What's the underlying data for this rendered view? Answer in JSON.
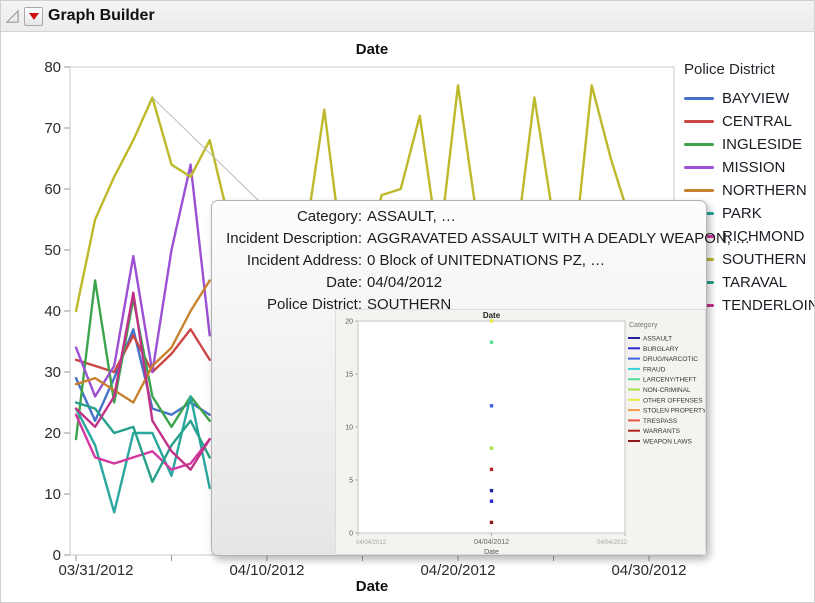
{
  "header": {
    "title": "Graph Builder"
  },
  "chart_data": [
    {
      "id": "main-chart",
      "type": "line",
      "title": "Date",
      "xlabel": "Date",
      "ylabel": "",
      "ylim": [
        0,
        80
      ],
      "y_ticks": [
        0,
        10,
        20,
        30,
        40,
        50,
        60,
        70,
        80
      ],
      "x_tick_labels": [
        "03/31/2012",
        "04/10/2012",
        "04/20/2012",
        "04/30/2012"
      ],
      "x_tick_positions": [
        0,
        10,
        20,
        30
      ],
      "x_minor_tick_step_days": 5,
      "x_start_label": "03/31/2012",
      "grid": false,
      "legend_title": "Police District",
      "legend_position": "right",
      "series": [
        {
          "name": "BAYVIEW",
          "color": "#4673c8",
          "values": [
            29,
            22,
            29,
            37,
            24,
            23,
            25,
            23
          ]
        },
        {
          "name": "CENTRAL",
          "color": "#cb4745",
          "values": [
            32,
            31,
            30,
            36,
            30,
            33,
            37,
            32
          ]
        },
        {
          "name": "INGLESIDE",
          "color": "#3ea34d",
          "values": [
            19,
            45,
            25,
            42,
            26,
            21,
            26,
            22
          ]
        },
        {
          "name": "MISSION",
          "color": "#9c50d4",
          "values": [
            34,
            26,
            31,
            49,
            30,
            50,
            64,
            36
          ]
        },
        {
          "name": "NORTHERN",
          "color": "#c8812f",
          "values": [
            28,
            29,
            27,
            25,
            31,
            34,
            40,
            45
          ]
        },
        {
          "name": "PARK",
          "color": "#2aa79f",
          "values": [
            24,
            18,
            7,
            20,
            20,
            13,
            26,
            11
          ]
        },
        {
          "name": "RICHMOND",
          "color": "#d238a0",
          "values": [
            23,
            16,
            15,
            16,
            17,
            14,
            15,
            19
          ]
        },
        {
          "name": "SOUTHERN",
          "color": "#bdb92b",
          "values": [
            40,
            55,
            62,
            68,
            75,
            64,
            62,
            68,
            55,
            47,
            46,
            50,
            52,
            73,
            48,
            46,
            59,
            60,
            72,
            50,
            77,
            55,
            46,
            50,
            75,
            55,
            47,
            77,
            65,
            55,
            40
          ]
        },
        {
          "name": "TARAVAL",
          "color": "#27a18b",
          "values": [
            25,
            24,
            20,
            21,
            12,
            18,
            22,
            16
          ]
        },
        {
          "name": "TENDERLOIN",
          "color": "#c03288",
          "values": [
            24,
            21,
            26,
            43,
            22,
            17,
            14,
            19
          ]
        }
      ]
    },
    {
      "id": "tooltip-graphlet",
      "type": "scatter",
      "title": "Date",
      "xlabel": "Date",
      "ylim": [
        0,
        20
      ],
      "y_ticks": [
        0,
        5,
        10,
        15,
        20
      ],
      "x": "04/04/2012",
      "x_tick_labels": [
        "04/04/2012",
        "04/04/2012",
        "04/04/2012"
      ],
      "legend_title": "Category",
      "legend_items": [
        {
          "name": "ASSAULT",
          "color": "#23239b"
        },
        {
          "name": "BURGLARY",
          "color": "#2b2bd5"
        },
        {
          "name": "DRUG/NARCOTIC",
          "color": "#3d63e3"
        },
        {
          "name": "FRAUD",
          "color": "#38d2dc"
        },
        {
          "name": "LARCENY/THEFT",
          "color": "#52dc95"
        },
        {
          "name": "NON-CRIMINAL",
          "color": "#a8e043"
        },
        {
          "name": "OTHER OFFENSES",
          "color": "#e4e83e"
        },
        {
          "name": "STOLEN PROPERTY",
          "color": "#ef9a44"
        },
        {
          "name": "TRESPASS",
          "color": "#e85844"
        },
        {
          "name": "WARRANTS",
          "color": "#b3231f"
        },
        {
          "name": "WEAPON LAWS",
          "color": "#8c1a1a"
        }
      ],
      "points": [
        {
          "category": "OTHER OFFENSES",
          "y": 20
        },
        {
          "category": "LARCENY/THEFT",
          "y": 18
        },
        {
          "category": "DRUG/NARCOTIC",
          "y": 12
        },
        {
          "category": "NON-CRIMINAL",
          "y": 8
        },
        {
          "category": "WARRANTS",
          "y": 6
        },
        {
          "category": "ASSAULT",
          "y": 4
        },
        {
          "category": "BURGLARY",
          "y": 3
        },
        {
          "category": "WEAPON LAWS",
          "y": 1
        }
      ]
    }
  ],
  "tooltip": {
    "rows": [
      {
        "label": "Category:",
        "value": "ASSAULT, …"
      },
      {
        "label": "Incident Description:",
        "value": "AGGRAVATED ASSAULT WITH A DEADLY WEAPON, …"
      },
      {
        "label": "Incident Address:",
        "value": "0 Block of UNITEDNATIONS PZ, …"
      },
      {
        "label": "Date:",
        "value": "04/04/2012"
      },
      {
        "label": "Police District:",
        "value": "SOUTHERN"
      }
    ],
    "connector_point": {
      "date": "04/04/2012",
      "day_index": 4,
      "value": 75
    }
  }
}
